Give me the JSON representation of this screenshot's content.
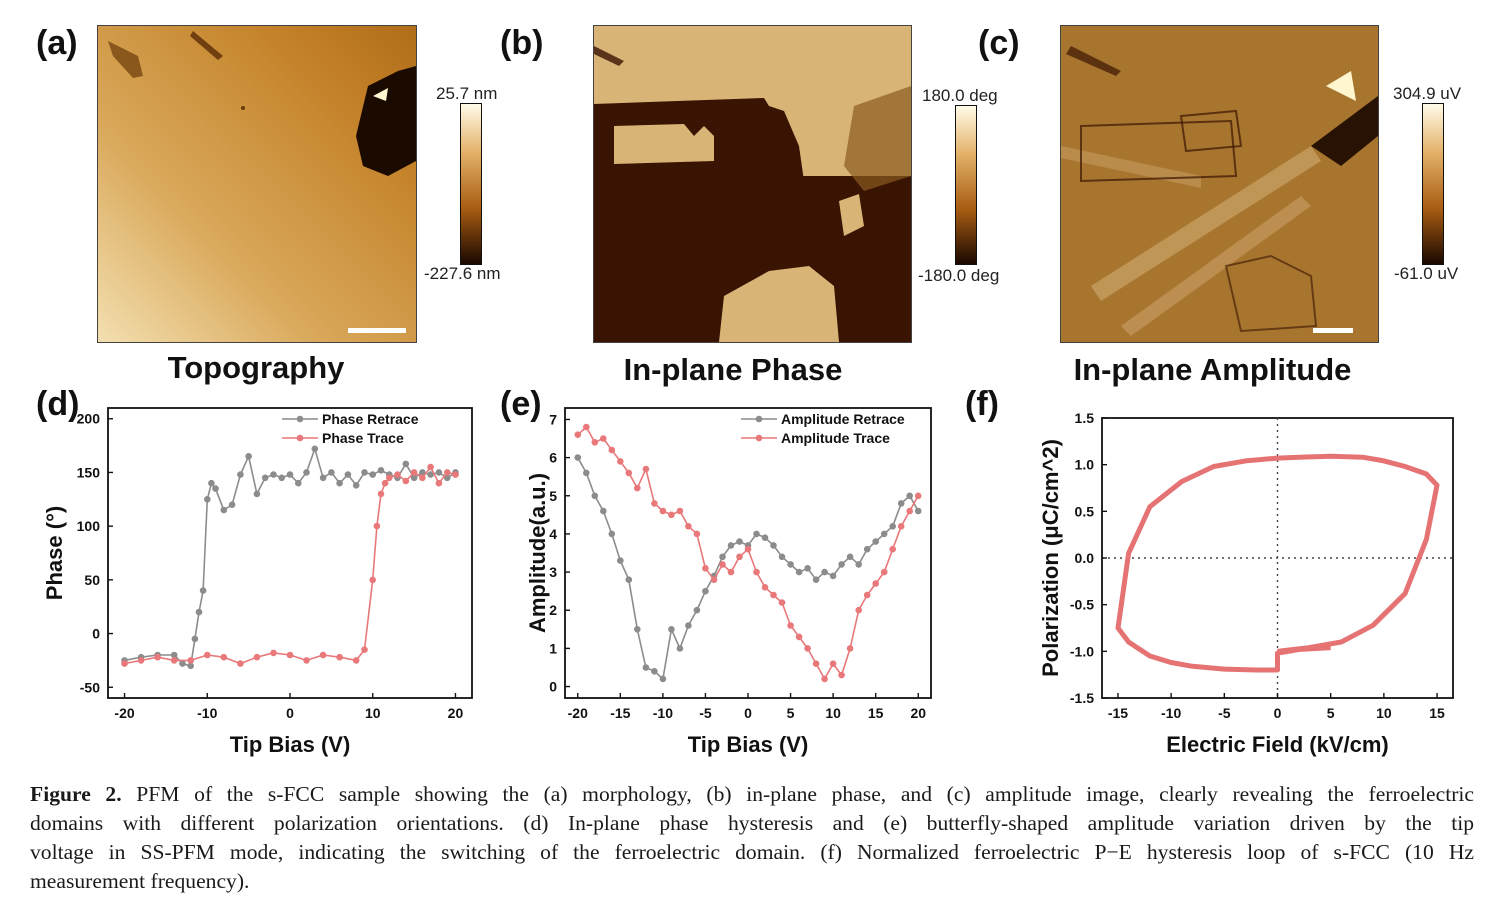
{
  "panels": {
    "a": {
      "letter": "(a)",
      "title": "Topography",
      "colorbar": {
        "max": "25.7 nm",
        "min": "-227.6 nm"
      }
    },
    "b": {
      "letter": "(b)",
      "title": "In-plane Phase",
      "colorbar": {
        "max": "180.0 deg",
        "min": "-180.0 deg"
      }
    },
    "c": {
      "letter": "(c)",
      "title": "In-plane Amplitude",
      "colorbar": {
        "max": "304.9 uV",
        "min": "-61.0 uV"
      }
    },
    "d": {
      "letter": "(d)"
    },
    "e": {
      "letter": "(e)"
    },
    "f": {
      "letter": "(f)"
    }
  },
  "colors": {
    "afm_dark": "#1a0800",
    "afm_mid": "#b8731c",
    "afm_light": "#fffbe8",
    "retrace": "#8c8c8c",
    "trace": "#e8787a",
    "loop": "#e57373"
  },
  "chart_data": [
    {
      "id": "d",
      "type": "line",
      "xlabel": "Tip Bias (V)",
      "ylabel": "Phase (°)",
      "xlim": [
        -22,
        22
      ],
      "ylim": [
        -60,
        210
      ],
      "xticks": [
        -20,
        -10,
        0,
        10,
        20
      ],
      "yticks": [
        200,
        150,
        100,
        50,
        0,
        -50
      ],
      "legend_position": "top-right",
      "series": [
        {
          "name": "Phase Retrace",
          "x": [
            -20,
            -18,
            -16,
            -14,
            -13,
            -12,
            -11.5,
            -11,
            -10.5,
            -10,
            -9.5,
            -9,
            -8,
            -7,
            -6,
            -5,
            -4,
            -3,
            -2,
            -1,
            0,
            1,
            2,
            3,
            4,
            5,
            6,
            7,
            8,
            9,
            10,
            11,
            12,
            13,
            14,
            15,
            16,
            17,
            18,
            19,
            20
          ],
          "y": [
            -25,
            -22,
            -20,
            -20,
            -28,
            -30,
            -5,
            20,
            40,
            125,
            140,
            135,
            115,
            120,
            148,
            165,
            130,
            145,
            148,
            145,
            148,
            140,
            150,
            172,
            145,
            150,
            140,
            148,
            138,
            150,
            148,
            152,
            148,
            145,
            158,
            145,
            150,
            148,
            150,
            145,
            150
          ]
        },
        {
          "name": "Phase Trace",
          "x": [
            -20,
            -18,
            -16,
            -14,
            -12,
            -10,
            -8,
            -6,
            -4,
            -2,
            0,
            2,
            4,
            6,
            8,
            9,
            10,
            10.5,
            11,
            11.5,
            12,
            13,
            14,
            15,
            16,
            17,
            18,
            19,
            20
          ],
          "y": [
            -28,
            -25,
            -22,
            -25,
            -25,
            -20,
            -22,
            -28,
            -22,
            -18,
            -20,
            -25,
            -20,
            -22,
            -25,
            -15,
            50,
            100,
            130,
            140,
            145,
            148,
            142,
            150,
            145,
            155,
            140,
            150,
            148
          ]
        }
      ]
    },
    {
      "id": "e",
      "type": "line",
      "xlabel": "Tip Bias (V)",
      "ylabel": "Amplitude(a.u.)",
      "xlim": [
        -21.5,
        21.5
      ],
      "ylim": [
        -0.3,
        7.3
      ],
      "xticks": [
        -20,
        -15,
        -10,
        -5,
        0,
        5,
        10,
        15,
        20
      ],
      "yticks": [
        7,
        6,
        5,
        4,
        3,
        2,
        1,
        0
      ],
      "legend_position": "top-right",
      "series": [
        {
          "name": "Amplitude Retrace",
          "x": [
            -20,
            -19,
            -18,
            -17,
            -16,
            -15,
            -14,
            -13,
            -12,
            -11,
            -10,
            -9,
            -8,
            -7,
            -6,
            -5,
            -4,
            -3,
            -2,
            -1,
            0,
            1,
            2,
            3,
            4,
            5,
            6,
            7,
            8,
            9,
            10,
            11,
            12,
            13,
            14,
            15,
            16,
            17,
            18,
            19,
            20
          ],
          "y": [
            6.0,
            5.6,
            5.0,
            4.6,
            4.0,
            3.3,
            2.8,
            1.5,
            0.5,
            0.4,
            0.2,
            1.5,
            1.0,
            1.6,
            2.0,
            2.5,
            2.9,
            3.4,
            3.7,
            3.8,
            3.7,
            4.0,
            3.9,
            3.7,
            3.4,
            3.2,
            3.0,
            3.1,
            2.8,
            3.0,
            2.9,
            3.2,
            3.4,
            3.2,
            3.6,
            3.8,
            4.0,
            4.2,
            4.8,
            5.0,
            4.6
          ]
        },
        {
          "name": "Amplitude Trace",
          "x": [
            -20,
            -19,
            -18,
            -17,
            -16,
            -15,
            -14,
            -13,
            -12,
            -11,
            -10,
            -9,
            -8,
            -7,
            -6,
            -5,
            -4,
            -3,
            -2,
            -1,
            0,
            1,
            2,
            3,
            4,
            5,
            6,
            7,
            8,
            9,
            10,
            11,
            12,
            13,
            14,
            15,
            16,
            17,
            18,
            19,
            20
          ],
          "y": [
            6.6,
            6.8,
            6.4,
            6.5,
            6.2,
            5.9,
            5.6,
            5.2,
            5.7,
            4.8,
            4.6,
            4.5,
            4.6,
            4.2,
            4.0,
            3.1,
            2.8,
            3.2,
            3.0,
            3.4,
            3.6,
            3.0,
            2.6,
            2.4,
            2.2,
            1.6,
            1.3,
            1.0,
            0.6,
            0.2,
            0.6,
            0.3,
            1.0,
            2.0,
            2.4,
            2.7,
            3.0,
            3.6,
            4.2,
            4.6,
            5.0
          ]
        }
      ]
    },
    {
      "id": "f",
      "type": "line",
      "xlabel": "Electric Field (kV/cm)",
      "ylabel": "Polarization (μC/cm^2)",
      "xlim": [
        -16.5,
        16.5
      ],
      "ylim": [
        -1.5,
        1.5
      ],
      "xticks": [
        -15,
        -10,
        -5,
        0,
        5,
        10,
        15
      ],
      "yticks": [
        1.5,
        1.0,
        0.5,
        0.0,
        -0.5,
        -1.0,
        -1.5
      ],
      "series": [
        {
          "x": [
            0,
            3,
            6,
            9,
            12,
            14,
            15,
            14,
            12,
            10,
            8,
            5,
            2,
            0,
            -3,
            -6,
            -9,
            -12,
            -14,
            -15,
            -14,
            -12,
            -10,
            -8,
            -5,
            -2,
            0,
            0,
            2,
            5
          ],
          "y": [
            -1.0,
            -0.96,
            -0.9,
            -0.72,
            -0.38,
            0.2,
            0.78,
            0.9,
            0.98,
            1.04,
            1.08,
            1.09,
            1.08,
            1.07,
            1.04,
            0.98,
            0.82,
            0.55,
            0.05,
            -0.75,
            -0.9,
            -1.05,
            -1.12,
            -1.16,
            -1.19,
            -1.2,
            -1.2,
            -1.02,
            -0.98,
            -0.96
          ]
        }
      ]
    }
  ],
  "caption": {
    "label": "Figure 2.",
    "line1": "PFM of the s-FCC sample showing the (a) morphology, (b) in-plane phase, and (c) amplitude image, clearly revealing the ferroelectric",
    "line2": "domains with different polarization orientations. (d) In-plane phase hysteresis and (e) butterfly-shaped amplitude variation driven by the tip",
    "line3": "voltage in SS-PFM mode, indicating the switching of the ferroelectric domain. (f) Normalized ferroelectric P−E hysteresis loop of s-FCC (10 Hz",
    "line4": "measurement frequency)."
  }
}
